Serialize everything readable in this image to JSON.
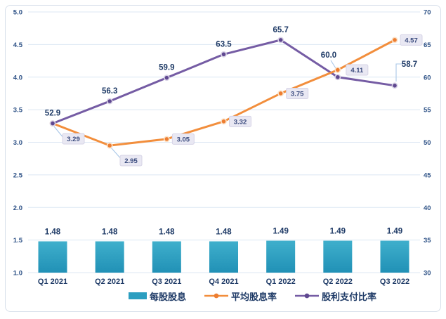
{
  "chart_data": {
    "type": "combo",
    "title": "",
    "categories": [
      "Q1 2021",
      "Q2 2021",
      "Q3 2021",
      "Q4 2021",
      "Q1 2022",
      "Q2 2022",
      "Q3 2022"
    ],
    "series": [
      {
        "name": "每股股息",
        "type": "bar",
        "axis": "left",
        "color": "#2B9EC0",
        "values": [
          1.48,
          1.48,
          1.48,
          1.48,
          1.49,
          1.49,
          1.49
        ],
        "labels": [
          "1.48",
          "1.48",
          "1.48",
          "1.48",
          "1.49",
          "1.49",
          "1.49"
        ]
      },
      {
        "name": "平均股息率",
        "type": "line",
        "axis": "left",
        "color": "#F28E3C",
        "marker_color": "#ED7D31",
        "values": [
          3.29,
          2.95,
          3.05,
          3.32,
          3.75,
          4.11,
          4.57
        ],
        "labels": [
          "3.29",
          "2.95",
          "3.05",
          "3.32",
          "3.75",
          "4.11",
          "4.57"
        ],
        "label_style": "boxed"
      },
      {
        "name": "股利支付比率",
        "type": "line",
        "axis": "right",
        "color": "#755CA4",
        "marker_color": "#5F4890",
        "values": [
          52.9,
          56.3,
          59.9,
          63.5,
          65.7,
          60.0,
          58.7
        ],
        "labels": [
          "52.9",
          "56.3",
          "59.9",
          "63.5",
          "65.7",
          "60.0",
          "58.7"
        ],
        "label_style": "bold"
      }
    ],
    "left_axis": {
      "min": 1.0,
      "max": 5.0,
      "step": 0.5,
      "ticks": [
        "5.0",
        "4.5",
        "4.0",
        "3.5",
        "3.0",
        "2.5",
        "2.0",
        "1.5",
        "1.0"
      ]
    },
    "right_axis": {
      "min": 30,
      "max": 70,
      "step": 5,
      "ticks": [
        "70",
        "65",
        "60",
        "55",
        "50",
        "45",
        "40",
        "35",
        "30"
      ]
    },
    "grid": true,
    "legend_position": "bottom"
  },
  "colors": {
    "bar_top": "#3FAFCC",
    "bar_bottom": "#2191B6",
    "bar_legend": "#2B9EC0",
    "line_avg_yield": "#F28E3C",
    "marker_avg_yield": "#ED7D31",
    "marker_avg_ring": "#FBE2C8",
    "line_payout": "#755CA4",
    "marker_payout": "#5F4890",
    "marker_payout_ring": "#D9D3E6",
    "label_navy": "#1E3A66",
    "tick_navy": "#2D5186",
    "label_box_fill": "#E9E8F3",
    "label_box_border": "#D6D3E6",
    "label_box_text": "#3A4B7E",
    "gridline": "#DCE7F3",
    "leader": "#A9C7E8",
    "frame_border": "#D7DFEA"
  }
}
